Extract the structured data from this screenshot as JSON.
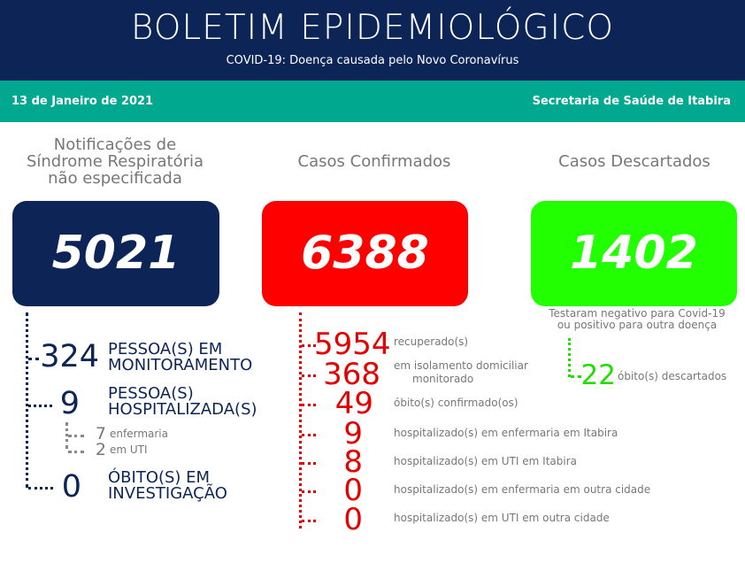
{
  "header": {
    "title": "BOLETIM EPIDEMIOLÓGICO",
    "subtitle": "COVID-19: Doença causada pelo Novo Coronavírus"
  },
  "bar": {
    "date": "13 de Janeiro de 2021",
    "secretaria": "Secretaria de Saúde de Itabira"
  },
  "colors": {
    "navy": "#0c2556",
    "teal": "#00a88f",
    "red": "#ff0000",
    "green": "#22ff00"
  },
  "notificacoes": {
    "heading_line1": "Notificações de",
    "heading_line2": "Síndrome Respiratória",
    "heading_line3": "não especificada",
    "total": "5021",
    "monitoramento": {
      "value": "324",
      "label_line1": "PESSOA(S) EM",
      "label_line2": "MONITORAMENTO"
    },
    "hospitalizadas": {
      "value": "9",
      "label_line1": "PESSOA(S)",
      "label_line2": "HOSPITALIZADA(S)"
    },
    "enfermaria": {
      "value": "7",
      "label": "enfermaria"
    },
    "uti": {
      "value": "2",
      "label": "em UTI"
    },
    "investigacao": {
      "value": "0",
      "label_line1": "ÓBITO(S) EM",
      "label_line2": "INVESTIGAÇÃO"
    }
  },
  "confirmados": {
    "heading": "Casos Confirmados",
    "total": "6388",
    "items": [
      {
        "value": "5954",
        "label": "recuperado(s)"
      },
      {
        "value": "368",
        "label": "em isolamento domiciliar",
        "label2": "monitorado"
      },
      {
        "value": "49",
        "label": "óbito(s) confirmado(os)"
      },
      {
        "value": "9",
        "label": "hospitalizado(s) em enfermaria em Itabira"
      },
      {
        "value": "8",
        "label": "hospitalizado(s) em UTI em Itabira"
      },
      {
        "value": "0",
        "label": "hospitalizado(s) em enfermaria em outra cidade"
      },
      {
        "value": "0",
        "label": "hospitalizado(s) em UTI em outra cidade"
      }
    ]
  },
  "descartados": {
    "heading": "Casos Descartados",
    "total": "1402",
    "note_line1": "Testaram negativo para Covid-19",
    "note_line2": "ou positivo para outra doença",
    "obitos": {
      "value": "22",
      "label": "óbito(s) descartados"
    }
  }
}
